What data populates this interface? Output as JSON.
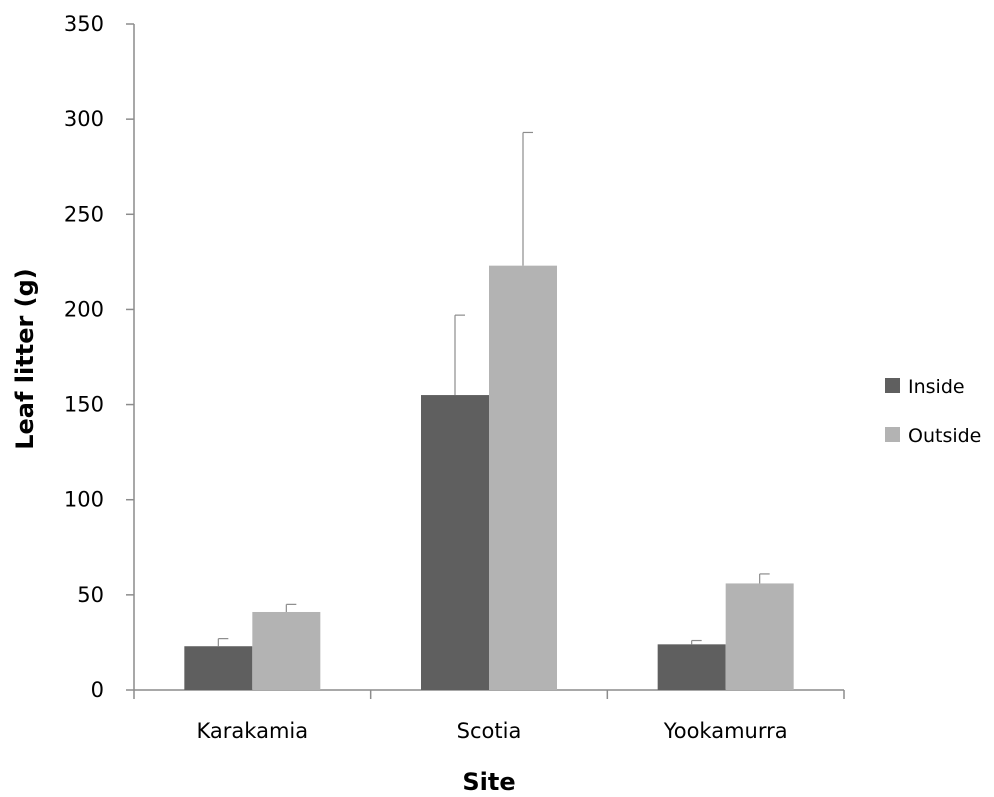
{
  "chart_data": {
    "type": "bar",
    "title": "",
    "xlabel": "Site",
    "ylabel": "Leaf litter (g)",
    "categories": [
      "Karakamia",
      "Scotia",
      "Yookamurra"
    ],
    "series": [
      {
        "name": "Inside",
        "color": "#5f5f5f",
        "values": [
          23,
          155,
          24
        ],
        "errors": [
          4,
          42,
          2
        ]
      },
      {
        "name": "Outside",
        "color": "#b3b3b3",
        "values": [
          41,
          223,
          56
        ],
        "errors": [
          4,
          70,
          5
        ]
      }
    ],
    "ylim": [
      0,
      350
    ],
    "yticks": [
      0,
      50,
      100,
      150,
      200,
      250,
      300,
      350
    ],
    "grid": false,
    "legend": "right"
  }
}
